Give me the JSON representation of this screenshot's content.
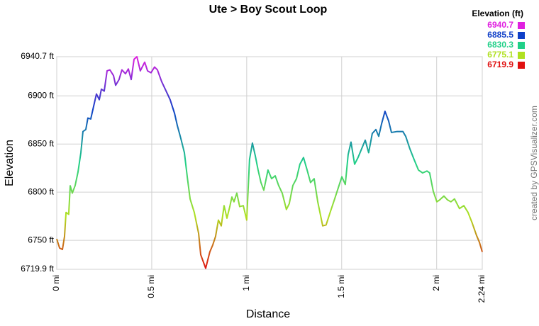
{
  "chart_data": {
    "type": "line",
    "title": "Ute > Boy Scout Loop",
    "x_label": "Distance",
    "y_label": "Elevation",
    "legend_title": "Elevation (ft)",
    "watermark": "created by GPSVisualizer.com",
    "color_scale": [
      {
        "value": 6940.7,
        "color": "#e020e0"
      },
      {
        "value": 6885.5,
        "color": "#1040c8"
      },
      {
        "value": 6830.3,
        "color": "#20d088"
      },
      {
        "value": 6775.1,
        "color": "#b0e020"
      },
      {
        "value": 6719.9,
        "color": "#e01010"
      }
    ],
    "xlim": [
      0,
      2.24
    ],
    "ylim": [
      6719.9,
      6940.7
    ],
    "xticks": [
      {
        "value": 0,
        "label": "0 mi"
      },
      {
        "value": 0.5,
        "label": "0.5 mi"
      },
      {
        "value": 1,
        "label": "1 mi"
      },
      {
        "value": 1.5,
        "label": "1.5 mi"
      },
      {
        "value": 2,
        "label": "2 mi"
      },
      {
        "value": 2.24,
        "label": "2.24 mi"
      }
    ],
    "yticks": [
      {
        "value": 6719.9,
        "label": "6719.9 ft"
      },
      {
        "value": 6750,
        "label": "6750 ft"
      },
      {
        "value": 6800,
        "label": "6800 ft"
      },
      {
        "value": 6850,
        "label": "6850 ft"
      },
      {
        "value": 6900,
        "label": "6900 ft"
      },
      {
        "value": 6940.7,
        "label": "6940.7 ft"
      }
    ],
    "grid": true,
    "x": [
      0,
      0.015,
      0.03,
      0.041,
      0.049,
      0.063,
      0.071,
      0.082,
      0.097,
      0.112,
      0.127,
      0.138,
      0.153,
      0.164,
      0.179,
      0.194,
      0.209,
      0.224,
      0.235,
      0.25,
      0.265,
      0.28,
      0.299,
      0.31,
      0.328,
      0.343,
      0.362,
      0.377,
      0.392,
      0.407,
      0.422,
      0.44,
      0.463,
      0.478,
      0.496,
      0.515,
      0.53,
      0.552,
      0.571,
      0.597,
      0.62,
      0.635,
      0.653,
      0.672,
      0.687,
      0.702,
      0.724,
      0.747,
      0.758,
      0.784,
      0.806,
      0.821,
      0.836,
      0.851,
      0.866,
      0.881,
      0.896,
      0.911,
      0.922,
      0.933,
      0.948,
      0.963,
      0.982,
      1.0,
      1.015,
      1.03,
      1.045,
      1.06,
      1.075,
      1.09,
      1.112,
      1.131,
      1.15,
      1.168,
      1.187,
      1.209,
      1.224,
      1.243,
      1.262,
      1.28,
      1.299,
      1.318,
      1.336,
      1.355,
      1.374,
      1.4,
      1.418,
      1.441,
      1.463,
      1.486,
      1.501,
      1.519,
      1.534,
      1.549,
      1.568,
      1.586,
      1.605,
      1.624,
      1.642,
      1.661,
      1.68,
      1.695,
      1.71,
      1.728,
      1.747,
      1.762,
      1.792,
      1.822,
      1.837,
      1.859,
      1.881,
      1.904,
      1.926,
      1.949,
      1.963,
      1.982,
      2.001,
      2.016,
      2.038,
      2.057,
      2.075,
      2.094,
      2.12,
      2.143,
      2.165,
      2.187,
      2.21,
      2.225,
      2.24
    ],
    "values": [
      6751.5,
      6742,
      6740.5,
      6754,
      6779,
      6777,
      6806.7,
      6799,
      6807,
      6821,
      6841,
      6863,
      6865,
      6877,
      6876,
      6889,
      6902,
      6896,
      6907,
      6905,
      6926,
      6927,
      6921,
      6911,
      6917,
      6927,
      6923,
      6928,
      6917,
      6938,
      6940.7,
      6926,
      6935,
      6926,
      6924,
      6930,
      6927,
      6915,
      6907,
      6896,
      6882,
      6869,
      6856,
      6841,
      6816,
      6793,
      6779,
      6757,
      6735,
      6721,
      6738,
      6745,
      6754,
      6771,
      6765,
      6786,
      6773,
      6785,
      6795,
      6790,
      6799,
      6785,
      6786,
      6771,
      6834,
      6851,
      6838,
      6823,
      6810,
      6802,
      6823,
      6814,
      6817,
      6807,
      6799,
      6782,
      6788,
      6807,
      6814,
      6829,
      6836,
      6823,
      6810,
      6814,
      6790,
      6765,
      6766,
      6780,
      6793,
      6807,
      6816,
      6808,
      6839,
      6852,
      6829,
      6836,
      6845,
      6854,
      6841,
      6861,
      6865,
      6858,
      6871,
      6884,
      6874,
      6862,
      6863,
      6863,
      6858,
      6845,
      6834,
      6823,
      6820,
      6822,
      6820,
      6801,
      6790,
      6792,
      6796,
      6792,
      6790,
      6793,
      6783,
      6786,
      6779,
      6768,
      6755,
      6748,
      6738
    ]
  }
}
